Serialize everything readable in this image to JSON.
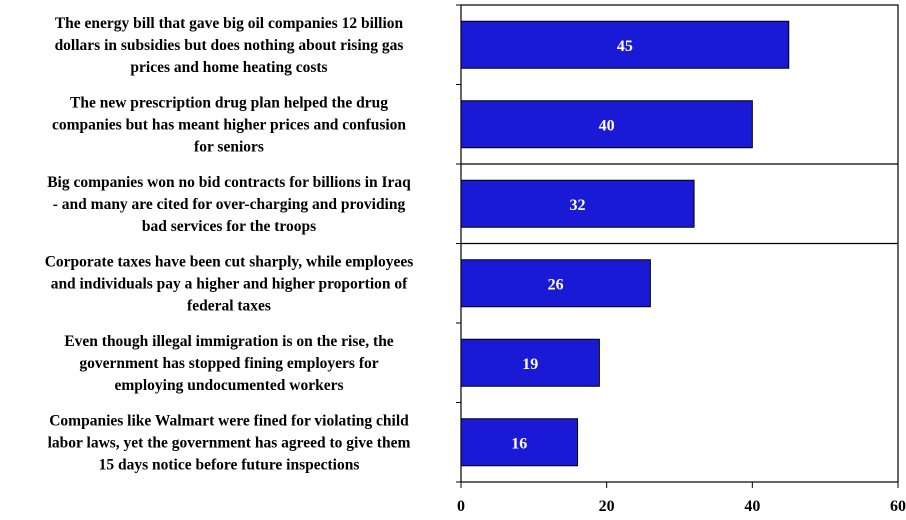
{
  "chart_data": {
    "type": "bar",
    "orientation": "horizontal",
    "title": "",
    "xlabel": "",
    "ylabel": "",
    "categories": [
      [
        "The energy bill that gave big oil companies 12 billion",
        "dollars in subsidies but does nothing about rising gas",
        "prices and home heating costs"
      ],
      [
        "The new prescription drug plan helped the drug",
        "companies but has meant higher prices and confusion",
        "for seniors"
      ],
      [
        "Big companies won no bid contracts for billions in Iraq",
        "- and many are cited for over-charging and providing",
        "bad services for the troops"
      ],
      [
        "Corporate taxes have been cut sharply, while employees",
        "and individuals pay a higher and higher proportion of",
        "federal taxes"
      ],
      [
        "Even though illegal immigration is on the rise, the",
        "government has stopped fining employers for",
        "employing undocumented workers"
      ],
      [
        "Companies like Walmart were fined for violating child",
        "labor laws, yet the government has agreed to give them",
        "15 days notice before future inspections"
      ]
    ],
    "values": [
      45,
      40,
      32,
      26,
      19,
      16
    ],
    "data_labels": [
      "45",
      "40",
      "32",
      "26",
      "19",
      "16"
    ],
    "xlim": [
      0,
      60
    ],
    "xticks": [
      0,
      20,
      40,
      60
    ],
    "xtick_labels": [
      "0",
      "20",
      "40",
      "60"
    ],
    "group_separators_after": [
      1,
      2
    ],
    "grid": false,
    "legend": false,
    "colors": {
      "bar": "#1a1ad6",
      "bar_border": "#000000",
      "value_text": "#ffffff",
      "axis": "#000000"
    }
  }
}
